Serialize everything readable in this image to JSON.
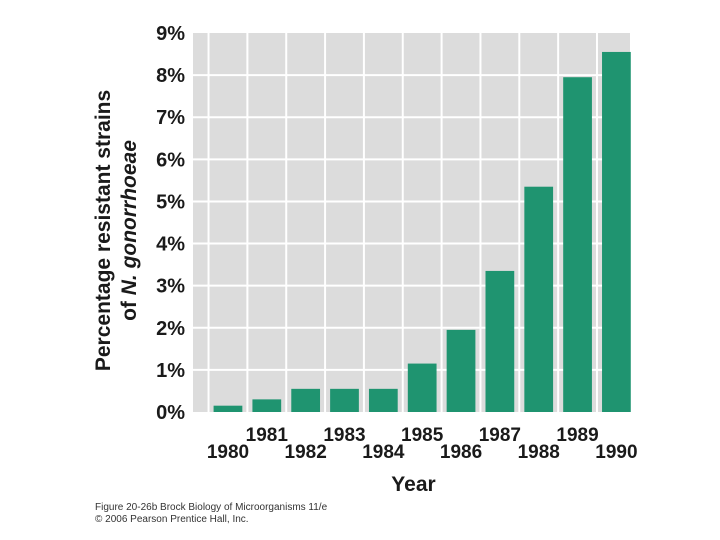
{
  "chart_data": {
    "type": "bar",
    "categories": [
      "1980",
      "1981",
      "1982",
      "1983",
      "1984",
      "1985",
      "1986",
      "1987",
      "1988",
      "1989",
      "1990"
    ],
    "values": [
      0.15,
      0.3,
      0.55,
      0.55,
      0.55,
      1.15,
      1.95,
      3.35,
      5.35,
      7.95,
      8.55
    ],
    "ylim": [
      0,
      9
    ],
    "yticks": [
      "0%",
      "1%",
      "2%",
      "3%",
      "4%",
      "5%",
      "6%",
      "7%",
      "8%",
      "9%"
    ],
    "xlabel": "Year",
    "ylabel_line1": "Percentage resistant strains",
    "ylabel_line2_prefix": "of ",
    "ylabel_line2_italic": "N. gonorrhoeae",
    "grid": true,
    "bar_color": "#1f9470",
    "plot_bg": "#dcdcdc"
  },
  "caption": {
    "line1": "Figure 20-26b  Brock Biology of Microorganisms 11/e",
    "line2": "© 2006 Pearson Prentice Hall, Inc."
  }
}
